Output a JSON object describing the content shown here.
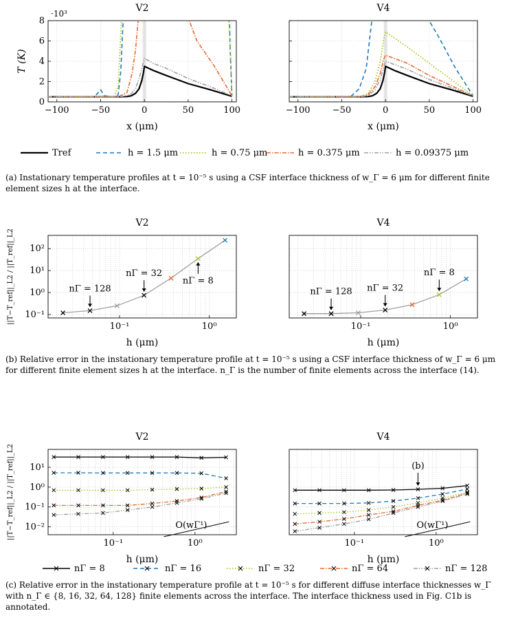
{
  "colors": {
    "ref": "#000000",
    "blue": "#1f77b4",
    "green": "#a8c316",
    "orange": "#e8682c",
    "gray": "#9e9e9e",
    "panel_gray": "#e6e6e6"
  },
  "captions": {
    "a": "(a)  Instationary temperature profiles at t = 10⁻⁵ s using a CSF interface thickness of w_Γ = 6 μm for different finite element sizes h at the interface.",
    "b": "(b)  Relative error in the instationary temperature profile at t = 10⁻⁵ s using a CSF interface thickness of w_Γ = 6 μm for different finite element sizes h at the interface. n_Γ is the number of finite elements across the interface (14).",
    "c": "(c)  Relative error in the instationary temperature profile at t = 10⁻⁵ s for different diffuse interface thicknesses w_Γ with n_Γ ∈ {8, 16, 32, 64, 128} finite elements across the interface. The interface thickness used in Fig. C1b is annotated."
  },
  "legend_a": [
    {
      "label": "T_ref",
      "color": "ref",
      "dash": "none",
      "width": 2.2
    },
    {
      "label": "h = 1.5 μm",
      "color": "blue",
      "dash": "6 4",
      "width": 1.6
    },
    {
      "label": "h = 0.75 μm",
      "color": "green",
      "dash": "1.5 2.5",
      "width": 1.8
    },
    {
      "label": "h = 0.375 μm",
      "color": "orange",
      "dash": "6 2 1.5 2",
      "width": 1.6
    },
    {
      "label": "h = 0.09375 μm",
      "color": "gray",
      "dash": "6 2 1.5 2 1.5 2",
      "width": 1.6
    }
  ],
  "legend_c": [
    {
      "label": "n_Γ = 8",
      "color": "ref",
      "dash": "none"
    },
    {
      "label": "n_Γ = 16",
      "color": "blue",
      "dash": "6 4"
    },
    {
      "label": "n_Γ = 32",
      "color": "green",
      "dash": "1.5 2.5"
    },
    {
      "label": "n_Γ = 64",
      "color": "orange",
      "dash": "6 2 1.5 2"
    },
    {
      "label": "n_Γ = 128",
      "color": "gray",
      "dash": "6 2 1.5 2 1.5 2"
    }
  ],
  "chart_data": [
    {
      "id": "a_V2",
      "type": "line",
      "title": "V2",
      "xlabel": "x (μm)",
      "ylabel": "T (K)",
      "y_multiplier": "·10³",
      "xlim": [
        -110,
        105
      ],
      "ylim": [
        0,
        8
      ],
      "xticks": [
        -100,
        -50,
        0,
        50,
        100
      ],
      "yticks": [
        0,
        2,
        4,
        6,
        8
      ],
      "shaded_band": [
        -2,
        2
      ],
      "grid": true,
      "series": [
        {
          "name": "T_ref",
          "color": "ref",
          "dash": "none",
          "width": 2.2,
          "points": [
            [
              -110,
              0.5
            ],
            [
              -30,
              0.5
            ],
            [
              -20,
              0.52
            ],
            [
              -15,
              0.6
            ],
            [
              -10,
              0.85
            ],
            [
              -6,
              1.3
            ],
            [
              -3,
              2.1
            ],
            [
              -1,
              2.9
            ],
            [
              0,
              3.5
            ],
            [
              10,
              3.1
            ],
            [
              25,
              2.6
            ],
            [
              50,
              1.8
            ],
            [
              75,
              1.2
            ],
            [
              100,
              0.55
            ]
          ]
        },
        {
          "name": "h = 1.5 μm",
          "color": "blue",
          "dash": "6 4",
          "width": 1.6,
          "points": [
            [
              -110,
              0.5
            ],
            [
              -60,
              0.5
            ],
            [
              -55,
              0.7
            ],
            [
              -50,
              1.2
            ],
            [
              -46,
              0.6
            ],
            [
              -35,
              0.5
            ],
            [
              -30,
              0.7
            ],
            [
              -27,
              3
            ],
            [
              -24,
              8.5
            ]
          ],
          "points2": [
            [
              97,
              9
            ],
            [
              98,
              5
            ],
            [
              100,
              0.6
            ]
          ]
        },
        {
          "name": "h = 0.75 μm",
          "color": "green",
          "dash": "1.5 2.5",
          "width": 1.8,
          "points": [
            [
              -110,
              0.5
            ],
            [
              -35,
              0.5
            ],
            [
              -30,
              1.5
            ],
            [
              -26,
              8.5
            ]
          ],
          "points2": [
            [
              96,
              9
            ],
            [
              98,
              5
            ],
            [
              100,
              0.6
            ]
          ]
        },
        {
          "name": "h = 0.375 μm",
          "color": "orange",
          "dash": "6 2 1.5 2",
          "width": 1.6,
          "points": [
            [
              -110,
              0.5
            ],
            [
              -30,
              0.5
            ],
            [
              -20,
              0.9
            ],
            [
              -14,
              2.8
            ],
            [
              -10,
              5.2
            ],
            [
              -7,
              8.2
            ]
          ],
          "points2": [
            [
              49,
              8.5
            ],
            [
              60,
              6
            ],
            [
              80,
              3.5
            ],
            [
              100,
              0.6
            ]
          ]
        },
        {
          "name": "h = 0.09375 μm",
          "color": "gray",
          "dash": "6 2 1.5 2 1.5 2",
          "width": 1.6,
          "points": [
            [
              -110,
              0.5
            ],
            [
              -30,
              0.5
            ],
            [
              -20,
              0.6
            ],
            [
              -15,
              0.8
            ],
            [
              -10,
              1.3
            ],
            [
              -6,
              2.3
            ],
            [
              -3,
              3.3
            ],
            [
              0,
              4.3
            ],
            [
              10,
              3.8
            ],
            [
              25,
              3.3
            ],
            [
              50,
              2.3
            ],
            [
              75,
              1.5
            ],
            [
              100,
              0.6
            ]
          ]
        }
      ]
    },
    {
      "id": "a_V4",
      "type": "line",
      "title": "V4",
      "xlabel": "x (μm)",
      "ylabel": "",
      "y_multiplier": "",
      "xlim": [
        -110,
        105
      ],
      "ylim": [
        0,
        8
      ],
      "xticks": [
        -100,
        -50,
        0,
        50,
        100
      ],
      "yticks": [
        0,
        2,
        4,
        6,
        8
      ],
      "shaded_band": [
        -2,
        2
      ],
      "grid": true,
      "series": [
        {
          "name": "T_ref",
          "color": "ref",
          "dash": "none",
          "width": 2.2,
          "points": [
            [
              -110,
              0.5
            ],
            [
              -30,
              0.5
            ],
            [
              -20,
              0.52
            ],
            [
              -15,
              0.6
            ],
            [
              -10,
              0.85
            ],
            [
              -6,
              1.3
            ],
            [
              -3,
              2.1
            ],
            [
              -1,
              2.9
            ],
            [
              0,
              3.5
            ],
            [
              10,
              3.1
            ],
            [
              25,
              2.6
            ],
            [
              50,
              1.8
            ],
            [
              75,
              1.2
            ],
            [
              100,
              0.55
            ]
          ]
        },
        {
          "name": "h = 1.5 μm",
          "color": "blue",
          "dash": "6 4",
          "width": 1.6,
          "points": [
            [
              -110,
              0.5
            ],
            [
              -40,
              0.5
            ],
            [
              -30,
              1.3
            ],
            [
              -22,
              3.3
            ],
            [
              -15,
              8.5
            ]
          ],
          "points2": [
            [
              43,
              9
            ],
            [
              60,
              6.5
            ],
            [
              80,
              3.3
            ],
            [
              100,
              0.6
            ]
          ]
        },
        {
          "name": "h = 0.75 μm",
          "color": "green",
          "dash": "1.5 2.5",
          "width": 1.8,
          "points": [
            [
              -110,
              0.5
            ],
            [
              -30,
              0.5
            ],
            [
              -20,
              0.8
            ],
            [
              -12,
              2
            ],
            [
              -6,
              4
            ],
            [
              -2,
              6.2
            ],
            [
              0,
              6.9
            ],
            [
              25,
              5.4
            ],
            [
              50,
              3.8
            ],
            [
              75,
              2.2
            ],
            [
              100,
              0.6
            ]
          ]
        },
        {
          "name": "h = 0.375 μm",
          "color": "orange",
          "dash": "6 2 1.5 2",
          "width": 1.6,
          "points": [
            [
              -110,
              0.5
            ],
            [
              -30,
              0.5
            ],
            [
              -20,
              0.7
            ],
            [
              -12,
              1.5
            ],
            [
              -6,
              2.8
            ],
            [
              -2,
              4.2
            ],
            [
              0,
              4.6
            ],
            [
              25,
              3.8
            ],
            [
              50,
              2.6
            ],
            [
              75,
              1.6
            ],
            [
              100,
              0.6
            ]
          ]
        },
        {
          "name": "h = 0.09375 μm",
          "color": "gray",
          "dash": "6 2 1.5 2 1.5 2",
          "width": 1.6,
          "points": [
            [
              -110,
              0.5
            ],
            [
              -30,
              0.5
            ],
            [
              -20,
              0.6
            ],
            [
              -12,
              1.2
            ],
            [
              -6,
              2.2
            ],
            [
              -2,
              3.4
            ],
            [
              0,
              4
            ],
            [
              25,
              3.2
            ],
            [
              50,
              2.2
            ],
            [
              75,
              1.4
            ],
            [
              100,
              0.6
            ]
          ]
        }
      ]
    },
    {
      "id": "b_V2",
      "type": "line",
      "title": "V2",
      "xlabel": "h (μm)",
      "ylabel": "||T−T_ref||_L2 / ||T_ref||_L2",
      "xscale": "log",
      "yscale": "log",
      "xlim": [
        0.016,
        2.0
      ],
      "ylim": [
        0.07,
        400
      ],
      "xticks": [
        0.1,
        1
      ],
      "xticklabels": [
        "10⁻¹",
        "10⁰"
      ],
      "yticks": [
        0.1,
        1,
        10,
        100
      ],
      "yticklabels": [
        "10⁻¹",
        "10⁰",
        "10¹",
        "10²"
      ],
      "grid": true,
      "points": [
        [
          0.0234,
          0.12,
          "ref"
        ],
        [
          0.0469,
          0.15,
          "ref"
        ],
        [
          0.09375,
          0.25,
          "gray"
        ],
        [
          0.1875,
          0.75,
          "ref"
        ],
        [
          0.375,
          4.5,
          "orange"
        ],
        [
          0.75,
          35,
          "green"
        ],
        [
          1.5,
          240,
          "blue"
        ]
      ],
      "annotations": [
        {
          "text": "n_Γ = 128",
          "x": 0.0469,
          "y": 0.15,
          "side": "above"
        },
        {
          "text": "n_Γ = 32",
          "x": 0.1875,
          "y": 0.75,
          "side": "above"
        },
        {
          "text": "n_Γ = 8",
          "x": 0.75,
          "y": 35,
          "side": "below"
        }
      ]
    },
    {
      "id": "b_V4",
      "type": "line",
      "title": "V4",
      "xlabel": "h (μm)",
      "ylabel": "",
      "xscale": "log",
      "yscale": "log",
      "xlim": [
        0.016,
        2.0
      ],
      "ylim": [
        0.07,
        400
      ],
      "xticks": [
        0.1,
        1
      ],
      "xticklabels": [
        "10⁻¹",
        "10⁰"
      ],
      "grid": true,
      "points": [
        [
          0.0234,
          0.11,
          "ref"
        ],
        [
          0.0469,
          0.11,
          "ref"
        ],
        [
          0.09375,
          0.12,
          "gray"
        ],
        [
          0.1875,
          0.16,
          "ref"
        ],
        [
          0.375,
          0.28,
          "orange"
        ],
        [
          0.75,
          0.8,
          "green"
        ],
        [
          1.5,
          4.2,
          "blue"
        ]
      ],
      "annotations": [
        {
          "text": "n_Γ = 128",
          "x": 0.0469,
          "y": 0.11,
          "side": "above"
        },
        {
          "text": "n_Γ = 32",
          "x": 0.1875,
          "y": 0.16,
          "side": "above"
        },
        {
          "text": "n_Γ = 8",
          "x": 0.75,
          "y": 0.8,
          "side": "above"
        }
      ]
    },
    {
      "id": "c_V2",
      "type": "line",
      "title": "V2",
      "xlabel": "h (μm)",
      "ylabel": "||T−T_ref||_L2 / ||T_ref||_L2",
      "xscale": "log",
      "yscale": "log",
      "xlim": [
        0.016,
        3.2
      ],
      "ylim": [
        0.004,
        80
      ],
      "xticks": [
        0.1,
        1
      ],
      "xticklabels": [
        "10⁻¹",
        "10⁰"
      ],
      "yticks": [
        0.01,
        0.1,
        1,
        10
      ],
      "yticklabels": [
        "10⁻²",
        "10⁻¹",
        "10⁰",
        "10¹"
      ],
      "grid": true,
      "x": [
        0.01875,
        0.0375,
        0.075,
        0.15,
        0.3,
        0.6,
        1.2,
        2.4
      ],
      "series": [
        {
          "name": "n_Γ = 8",
          "color": "ref",
          "dash": "none",
          "values": [
            33,
            33,
            33,
            33,
            33,
            33,
            30,
            32
          ]
        },
        {
          "name": "n_Γ = 16",
          "color": "blue",
          "dash": "6 4",
          "values": [
            5.3,
            5.3,
            5.2,
            5.2,
            5.2,
            5.2,
            5.0,
            2.8
          ]
        },
        {
          "name": "n_Γ = 32",
          "color": "green",
          "dash": "1.5 2.5",
          "values": [
            0.7,
            0.7,
            0.7,
            0.7,
            0.75,
            0.8,
            0.85,
            1.0
          ]
        },
        {
          "name": "n_Γ = 64",
          "color": "orange",
          "dash": "6 2 1.5 2",
          "values": [
            0.12,
            0.12,
            0.12,
            0.12,
            0.15,
            0.2,
            0.3,
            0.6
          ]
        },
        {
          "name": "n_Γ = 128",
          "color": "gray",
          "dash": "6 2 1.5 2 1.5 2",
          "values": [
            0.04,
            0.045,
            0.05,
            0.07,
            0.1,
            0.16,
            0.26,
            0.5
          ]
        }
      ],
      "slope_label": "O(w_Γ¹)"
    },
    {
      "id": "c_V4",
      "type": "line",
      "title": "V4",
      "xlabel": "h (μm)",
      "ylabel": "",
      "xscale": "log",
      "yscale": "log",
      "xlim": [
        0.016,
        3.2
      ],
      "ylim": [
        0.004,
        80
      ],
      "xticks": [
        0.1,
        1
      ],
      "xticklabels": [
        "10⁻¹",
        "10⁰"
      ],
      "grid": true,
      "x": [
        0.01875,
        0.0375,
        0.075,
        0.15,
        0.3,
        0.6,
        1.2,
        2.4
      ],
      "series": [
        {
          "name": "n_Γ = 8",
          "color": "ref",
          "dash": "none",
          "values": [
            0.7,
            0.7,
            0.7,
            0.7,
            0.72,
            0.78,
            0.88,
            1.2
          ]
        },
        {
          "name": "n_Γ = 16",
          "color": "blue",
          "dash": "6 4",
          "values": [
            0.15,
            0.15,
            0.15,
            0.16,
            0.2,
            0.28,
            0.45,
            0.8
          ]
        },
        {
          "name": "n_Γ = 32",
          "color": "green",
          "dash": "1.5 2.5",
          "values": [
            0.045,
            0.05,
            0.055,
            0.07,
            0.1,
            0.16,
            0.28,
            0.55
          ]
        },
        {
          "name": "n_Γ = 64",
          "color": "orange",
          "dash": "6 2 1.5 2",
          "values": [
            0.014,
            0.018,
            0.025,
            0.04,
            0.06,
            0.12,
            0.22,
            0.5
          ]
        },
        {
          "name": "n_Γ = 128",
          "color": "gray",
          "dash": "6 2 1.5 2 1.5 2",
          "values": [
            0.006,
            0.009,
            0.014,
            0.024,
            0.05,
            0.1,
            0.2,
            0.45
          ]
        }
      ],
      "slope_label": "O(w_Γ¹)",
      "annotation": {
        "text": "(b)",
        "x": 0.6,
        "y": 0.78
      }
    }
  ]
}
